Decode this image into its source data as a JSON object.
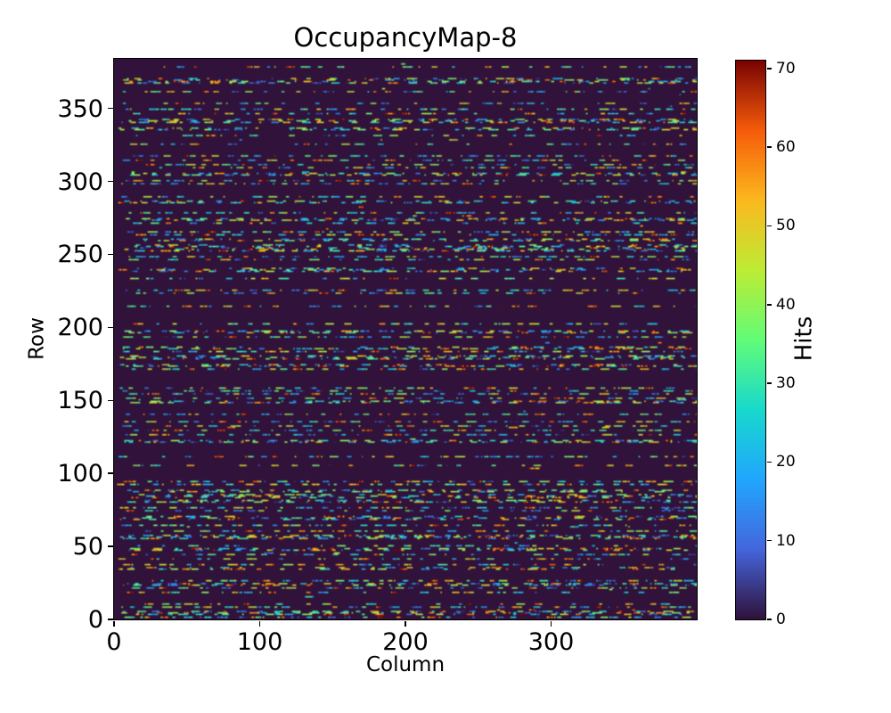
{
  "figure": {
    "background_color": "#ffffff",
    "text_color": "#000000"
  },
  "chart_data": {
    "type": "heatmap",
    "title": "OccupancyMap-8",
    "xlabel": "Column",
    "ylabel": "Row",
    "colorbar_label": "Hits",
    "cols": 400,
    "rows": 384,
    "xlim": [
      0,
      400
    ],
    "ylim": [
      0,
      384
    ],
    "clim": [
      0,
      71
    ],
    "x_ticks": [
      0,
      100,
      200,
      300
    ],
    "y_ticks": [
      0,
      50,
      100,
      150,
      200,
      250,
      300,
      350
    ],
    "colorbar_ticks": [
      0,
      10,
      20,
      30,
      40,
      50,
      60,
      70
    ],
    "grid": false,
    "legend": "none",
    "colormap": "turbo",
    "colormap_stops": [
      "#30123b",
      "#4466dd",
      "#21a6fe",
      "#18d9cd",
      "#62fc78",
      "#bdec34",
      "#fbb91e",
      "#f65c0a",
      "#7a0403"
    ],
    "background_value": 0,
    "background_value_color": "#30123b",
    "pattern_model": {
      "description": "sparse random pixel hits forming short horizontal dash segments on roughly every 3rd-4th row; hit values spread over the full 0-71 range (mix of blue, cyan, green, yellow, orange, red dashes) on a zero-valued dark background",
      "seed": 20258,
      "row_active_probability": 0.3,
      "sparse_row_probability": 0.12,
      "gap_length_range": [
        1,
        9
      ],
      "segment_length_range": [
        1,
        7
      ],
      "value_range": [
        2,
        71
      ]
    }
  }
}
